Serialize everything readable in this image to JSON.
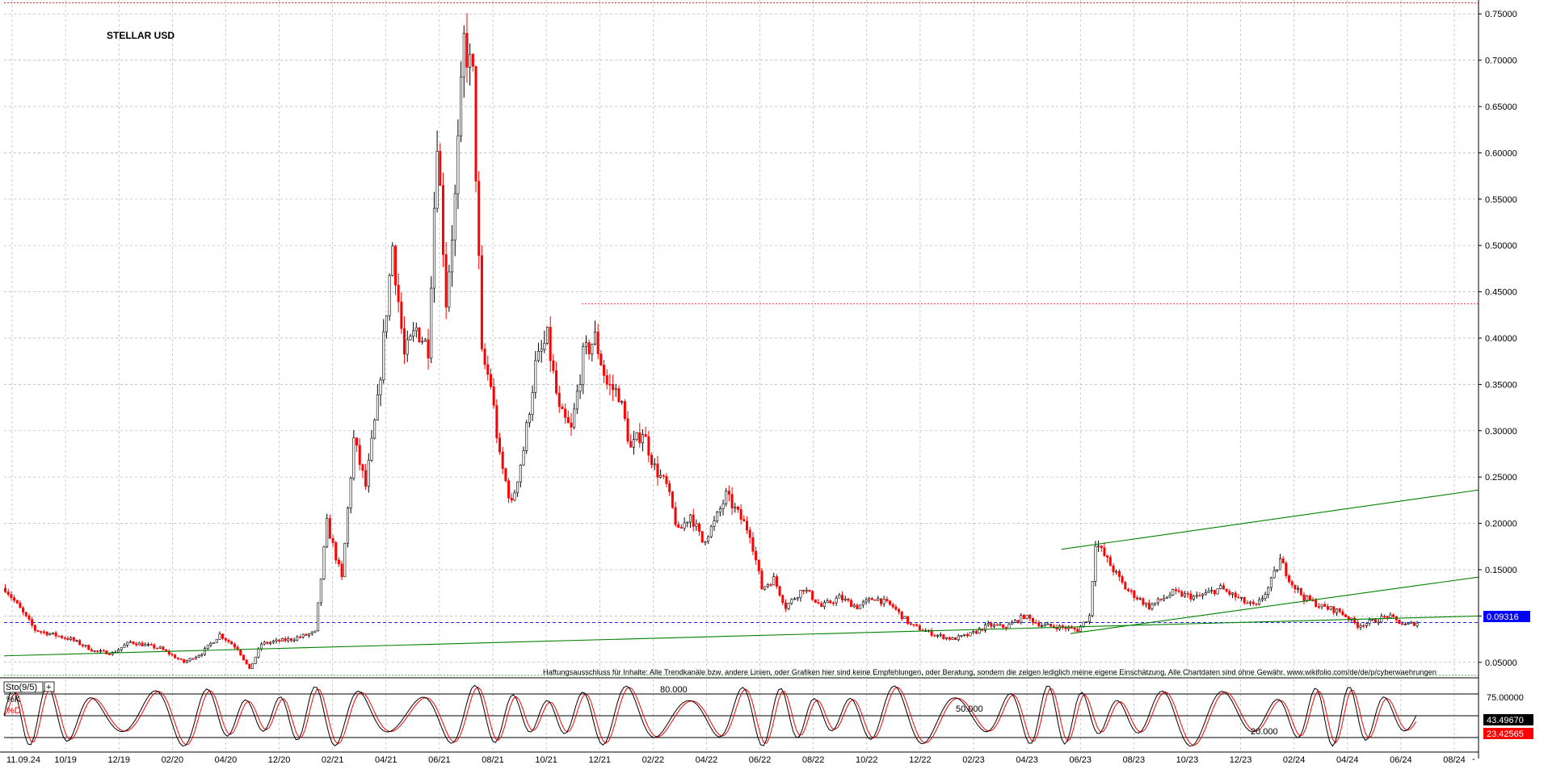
{
  "title": "STELLAR USD",
  "disclaimer": "Haftungsausschluss für Inhalte: Alle Trendkanäle bzw. andere Linien, oder Grafiken hier sind keine Empfehlungen, oder Beratung, sondern die zeigen lediglich meine eigene Einschätzung. Alle Chartdaten sind ohne Gewähr. www.wikifolio.com/de/de/p/cyberwaehrungen",
  "colors": {
    "up_candle": "#000000",
    "down_candle": "#ff0000",
    "trendline": "#008000",
    "grid": "#b4b4b4",
    "price_marker_bg": "#0000ff",
    "k_line": "#000000",
    "d_line": "#ff0000"
  },
  "chart_data": [
    {
      "type": "candlestick",
      "title": "STELLAR USD",
      "ylim": [
        0.035,
        0.765
      ],
      "y_ticks": [
        "0.05000",
        "0.10000",
        "0.15000",
        "0.20000",
        "0.25000",
        "0.30000",
        "0.35000",
        "0.40000",
        "0.45000",
        "0.50000",
        "0.55000",
        "0.60000",
        "0.65000",
        "0.70000",
        "0.75000"
      ],
      "x_ticks": [
        "11.09.24",
        "10/19",
        "12/19",
        "02/20",
        "04/20",
        "12/20",
        "02/21",
        "04/21",
        "06/21",
        "08/21",
        "10/21",
        "12/21",
        "02/22",
        "04/22",
        "06/22",
        "08/22",
        "10/22",
        "12/22",
        "02/23",
        "04/23",
        "06/23",
        "08/23",
        "10/23",
        "12/23",
        "02/24",
        "04/24",
        "06/24",
        "08/24"
      ],
      "last_price": "0.09316",
      "price_path": [
        [
          0,
          0.13
        ],
        [
          10,
          0.085
        ],
        [
          22,
          0.075
        ],
        [
          30,
          0.062
        ],
        [
          36,
          0.06
        ],
        [
          42,
          0.072
        ],
        [
          52,
          0.065
        ],
        [
          60,
          0.05
        ],
        [
          66,
          0.06
        ],
        [
          72,
          0.08
        ],
        [
          78,
          0.065
        ],
        [
          82,
          0.042
        ],
        [
          86,
          0.07
        ],
        [
          96,
          0.075
        ],
        [
          104,
          0.082
        ],
        [
          108,
          0.2
        ],
        [
          113,
          0.14
        ],
        [
          117,
          0.29
        ],
        [
          121,
          0.24
        ],
        [
          125,
          0.33
        ],
        [
          130,
          0.5
        ],
        [
          134,
          0.38
        ],
        [
          138,
          0.41
        ],
        [
          142,
          0.39
        ],
        [
          145,
          0.62
        ],
        [
          148,
          0.44
        ],
        [
          151,
          0.55
        ],
        [
          154,
          0.72
        ],
        [
          157,
          0.68
        ],
        [
          160,
          0.38
        ],
        [
          163,
          0.35
        ],
        [
          166,
          0.27
        ],
        [
          170,
          0.22
        ],
        [
          174,
          0.28
        ],
        [
          178,
          0.37
        ],
        [
          182,
          0.4
        ],
        [
          186,
          0.32
        ],
        [
          190,
          0.3
        ],
        [
          194,
          0.38
        ],
        [
          198,
          0.4
        ],
        [
          202,
          0.35
        ],
        [
          206,
          0.34
        ],
        [
          210,
          0.28
        ],
        [
          214,
          0.3
        ],
        [
          218,
          0.26
        ],
        [
          222,
          0.24
        ],
        [
          226,
          0.19
        ],
        [
          230,
          0.21
        ],
        [
          234,
          0.18
        ],
        [
          238,
          0.2
        ],
        [
          242,
          0.23
        ],
        [
          246,
          0.21
        ],
        [
          250,
          0.19
        ],
        [
          254,
          0.13
        ],
        [
          258,
          0.14
        ],
        [
          262,
          0.11
        ],
        [
          268,
          0.13
        ],
        [
          274,
          0.11
        ],
        [
          280,
          0.12
        ],
        [
          286,
          0.11
        ],
        [
          292,
          0.12
        ],
        [
          298,
          0.11
        ],
        [
          304,
          0.09
        ],
        [
          312,
          0.08
        ],
        [
          318,
          0.075
        ],
        [
          324,
          0.08
        ],
        [
          330,
          0.09
        ],
        [
          336,
          0.088
        ],
        [
          342,
          0.1
        ],
        [
          348,
          0.09
        ],
        [
          354,
          0.088
        ],
        [
          360,
          0.085
        ],
        [
          364,
          0.1
        ],
        [
          366,
          0.18
        ],
        [
          370,
          0.16
        ],
        [
          376,
          0.13
        ],
        [
          384,
          0.11
        ],
        [
          392,
          0.125
        ],
        [
          400,
          0.12
        ],
        [
          408,
          0.13
        ],
        [
          416,
          0.115
        ],
        [
          420,
          0.11
        ],
        [
          424,
          0.13
        ],
        [
          428,
          0.16
        ],
        [
          432,
          0.135
        ],
        [
          436,
          0.12
        ],
        [
          442,
          0.11
        ],
        [
          448,
          0.105
        ],
        [
          454,
          0.09
        ],
        [
          460,
          0.095
        ],
        [
          464,
          0.1
        ],
        [
          470,
          0.09
        ],
        [
          474,
          0.093
        ]
      ],
      "trendlines": [
        {
          "from": [
            0,
            0.057
          ],
          "to": [
            495,
            0.1
          ]
        },
        {
          "from": [
            0,
            0.787
          ],
          "to": [
            495,
            0.787
          ]
        },
        {
          "from": [
            355,
            0.172
          ],
          "to": [
            495,
            0.236
          ]
        },
        {
          "from": [
            358,
            0.081
          ],
          "to": [
            495,
            0.142
          ]
        }
      ],
      "h_levels": [
        {
          "value": 0.762,
          "style": "dotted-red"
        },
        {
          "value": 0.437,
          "style": "dotted-red"
        },
        {
          "value": 0.093,
          "style": "dashed-blue"
        },
        {
          "value": 0.036,
          "style": "dotted-green"
        }
      ]
    },
    {
      "type": "line",
      "title": "Sto(9/5)",
      "series": [
        {
          "name": "%K",
          "color": "#000000"
        },
        {
          "name": "%D",
          "color": "#ff0000"
        }
      ],
      "ylim": [
        0,
        100
      ],
      "y_ticks": [
        "75.00000"
      ],
      "levels": [
        "80.000",
        "50.000",
        "20.000"
      ],
      "k_last": "43.49670",
      "d_last": "23.42565"
    }
  ]
}
